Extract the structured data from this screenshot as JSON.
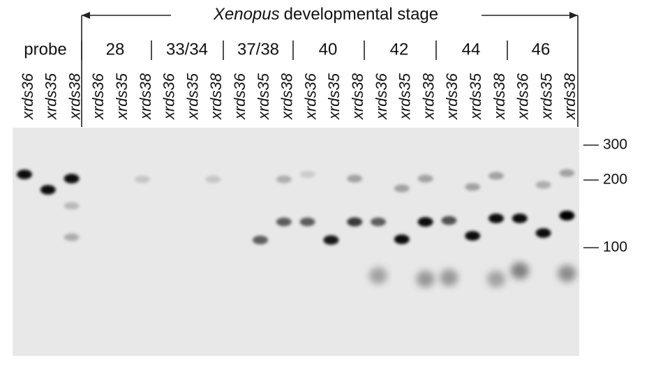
{
  "header": {
    "title_italic": "Xenopus",
    "title_rest": "developmental stage"
  },
  "groups": [
    "probe",
    "28",
    "33/34",
    "37/38",
    "40",
    "42",
    "44",
    "46"
  ],
  "lanes": [
    "xrds36",
    "xrds35",
    "xrds38",
    "xrds36",
    "xrds35",
    "xrds38",
    "xrds36",
    "xrds35",
    "xrds38",
    "xrds36",
    "xrds35",
    "xrds38",
    "xrds36",
    "xrds35",
    "xrds38",
    "xrds36",
    "xrds35",
    "xrds38",
    "xrds36",
    "xrds35",
    "xrds38",
    "xrds36",
    "xrds35",
    "xrds38"
  ],
  "size_markers": [
    "300",
    "200",
    "100"
  ]
}
